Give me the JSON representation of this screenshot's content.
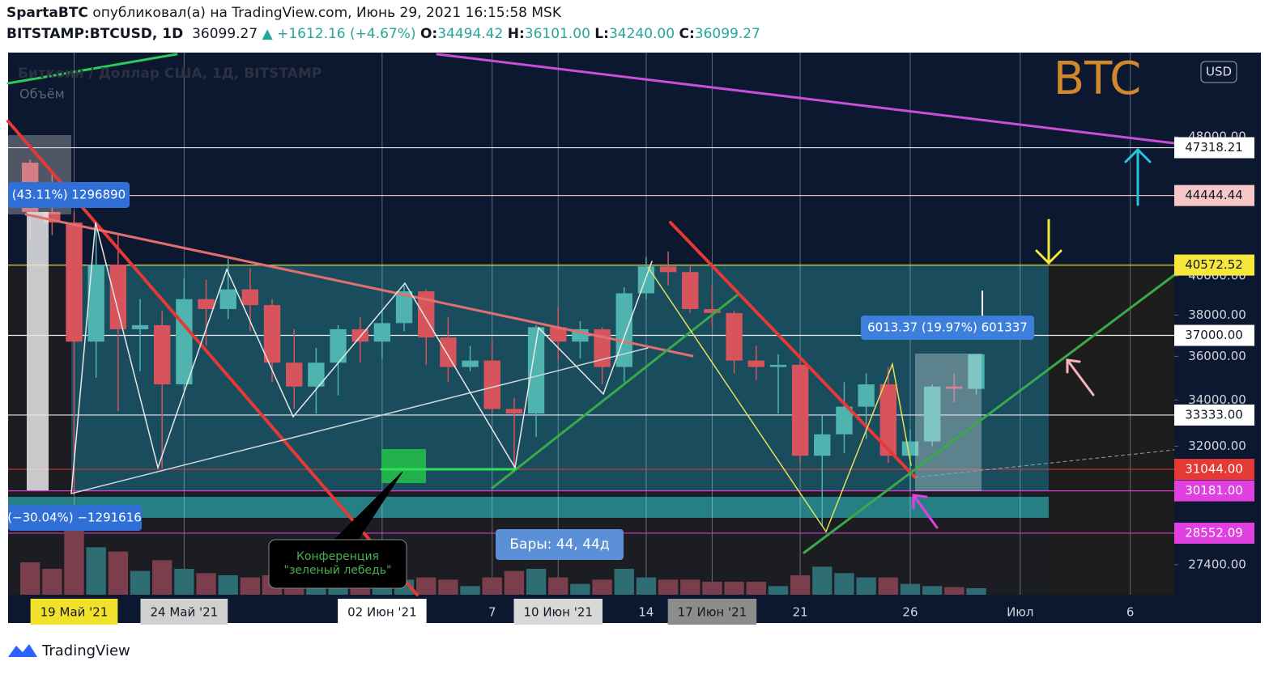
{
  "header": {
    "author": "SpartaBTC",
    "published": "опубликовал(а) на TradingView.com, Июнь 29, 2021 16:15:58 MSK",
    "symbol": "BITSTAMP:BTCUSD, 1D",
    "last": "36099.27",
    "change": "▲ +1612.16 (+4.67%)",
    "o_label": "O:",
    "o": "34494.42",
    "h_label": "H:",
    "h": "36101.00",
    "l_label": "L:",
    "l": "34240.00",
    "c_label": "C:",
    "c": "36099.27"
  },
  "legend": {
    "title": "Биткоин / Доллар США, 1Д, BITSTAMP",
    "volume": "Объём",
    "currency": "USD",
    "watermark": "BTC"
  },
  "annotations": {
    "range_up": "(43.11%) 1296890",
    "range_down": "(−30.04%) −1291616",
    "range_recent": "6013.37 (19.97%) 601337",
    "bars": "Бары: 44, 44д",
    "callout_1": "Конференция",
    "callout_2": "\"зеленый лебедь\""
  },
  "footer": {
    "brand": "TradingView"
  },
  "chart_data": {
    "type": "candlestick",
    "log_scale": true,
    "grid": true,
    "up_color": "#4fb3b0",
    "down_color": "#d8545c",
    "vol_up_color": "#2e6d74",
    "vol_down_color": "#7a3e4c",
    "x": [
      "2021-05-17",
      "2021-05-18",
      "2021-05-19",
      "2021-05-20",
      "2021-05-21",
      "2021-05-22",
      "2021-05-23",
      "2021-05-24",
      "2021-05-25",
      "2021-05-26",
      "2021-05-27",
      "2021-05-28",
      "2021-05-29",
      "2021-05-30",
      "2021-05-31",
      "2021-06-01",
      "2021-06-02",
      "2021-06-03",
      "2021-06-04",
      "2021-06-05",
      "2021-06-06",
      "2021-06-07",
      "2021-06-08",
      "2021-06-09",
      "2021-06-10",
      "2021-06-11",
      "2021-06-12",
      "2021-06-13",
      "2021-06-14",
      "2021-06-15",
      "2021-06-16",
      "2021-06-17",
      "2021-06-18",
      "2021-06-19",
      "2021-06-20",
      "2021-06-21",
      "2021-06-22",
      "2021-06-23",
      "2021-06-24",
      "2021-06-25",
      "2021-06-26",
      "2021-06-27",
      "2021-06-28",
      "2021-06-29"
    ],
    "open": [
      46400,
      43500,
      42900,
      36700,
      40600,
      37300,
      37500,
      34700,
      38800,
      38300,
      39300,
      38500,
      35700,
      34600,
      35700,
      37300,
      36700,
      37600,
      39200,
      36900,
      35500,
      35800,
      33600,
      33400,
      37400,
      36700,
      37300,
      35500,
      39100,
      40500,
      40200,
      38300,
      38100,
      35800,
      35500,
      35600,
      31600,
      32500,
      33700,
      34700,
      31600,
      32200,
      34600,
      34494.42
    ],
    "high": [
      46600,
      45800,
      43500,
      42500,
      42200,
      38800,
      38200,
      39900,
      39800,
      40900,
      40400,
      38800,
      37300,
      36400,
      37500,
      37900,
      38200,
      39500,
      39300,
      37900,
      36500,
      36800,
      34100,
      37500,
      38400,
      37700,
      37400,
      39400,
      41000,
      41300,
      40500,
      39500,
      38200,
      36500,
      36100,
      35700,
      33300,
      34800,
      35200,
      35500,
      32700,
      34700,
      35200,
      36101
    ],
    "low": [
      42000,
      42200,
      30000,
      35000,
      33500,
      35300,
      31100,
      34400,
      36500,
      37800,
      37200,
      34800,
      33600,
      33400,
      34200,
      35700,
      35900,
      37200,
      35600,
      34800,
      35300,
      33400,
      31000,
      32400,
      35800,
      35900,
      34700,
      34800,
      38800,
      39500,
      38100,
      37400,
      35200,
      34900,
      33400,
      31300,
      28800,
      31700,
      32300,
      31300,
      30200,
      32000,
      33900,
      34240
    ],
    "close": [
      43500,
      42900,
      36700,
      40600,
      37300,
      37500,
      34700,
      38800,
      38300,
      39300,
      38500,
      35700,
      34600,
      35700,
      37300,
      36700,
      37600,
      39200,
      36900,
      35500,
      35800,
      33600,
      33400,
      37400,
      36700,
      37300,
      35500,
      39100,
      40500,
      40200,
      38300,
      38100,
      35800,
      35500,
      35600,
      31600,
      32500,
      33700,
      34700,
      31600,
      32200,
      34600,
      34500,
      36099.27
    ],
    "volume": [
      15000,
      12000,
      30000,
      22000,
      20000,
      11000,
      16000,
      12000,
      10000,
      9000,
      8000,
      9000,
      8000,
      6000,
      6000,
      6000,
      6000,
      7000,
      8000,
      7000,
      4000,
      8000,
      11000,
      12000,
      8000,
      5000,
      7000,
      12000,
      8000,
      7000,
      7000,
      6000,
      6000,
      6000,
      4000,
      9000,
      13000,
      10000,
      8000,
      8000,
      5000,
      4000,
      3500,
      3000
    ],
    "xlim": [
      "2021-05-16",
      "2021-07-08"
    ],
    "xticks": [
      {
        "value": "2021-05-19",
        "label": "19 Май '21"
      },
      {
        "value": "2021-05-24",
        "label": "24 Май '21"
      },
      {
        "value": "2021-06-02",
        "label": "02 Июн '21"
      },
      {
        "value": "2021-06-07",
        "label": "7"
      },
      {
        "value": "2021-06-10",
        "label": "10 Июн '21"
      },
      {
        "value": "2021-06-14",
        "label": "14"
      },
      {
        "value": "2021-06-17",
        "label": "17 Июн '21"
      },
      {
        "value": "2021-06-21",
        "label": "21"
      },
      {
        "value": "2021-06-26",
        "label": "26"
      },
      {
        "value": "2021-07-01",
        "label": "Июл"
      },
      {
        "value": "2021-07-06",
        "label": "6"
      }
    ],
    "xtick_boxes": [
      "#f2e12a",
      "#d0d0d0",
      "#ffffff",
      null,
      "#d8d8d8",
      null,
      "#8c8c8c",
      null,
      null,
      null,
      null
    ],
    "ylim": [
      26340,
      53600
    ],
    "yticks": [
      {
        "value": 48000,
        "label": "48000.00"
      },
      {
        "value": 40000,
        "label": "40000.00"
      },
      {
        "value": 38000,
        "label": "38000.00"
      },
      {
        "value": 36000,
        "label": "36000.00"
      },
      {
        "value": 34000,
        "label": "34000.00"
      },
      {
        "value": 32000,
        "label": "32000.00"
      },
      {
        "value": 27400,
        "label": "27400.00"
      }
    ],
    "levels": [
      {
        "value": 47318.21,
        "label": "47318.21",
        "color": "#ffffff",
        "text_color": "#131722"
      },
      {
        "value": 44444.44,
        "label": "44444.44",
        "color": "#f7c6c6",
        "text_color": "#131722"
      },
      {
        "value": 40572.52,
        "label": "40572.52",
        "color": "#f5e83a",
        "text_color": "#131722"
      },
      {
        "value": 37000,
        "label": "37000.00",
        "color": "#ffffff",
        "text_color": "#131722"
      },
      {
        "value": 33333,
        "label": "33333.00",
        "color": "#ffffff",
        "text_color": "#131722"
      },
      {
        "value": 31044,
        "label": "31044.00",
        "color": "#e53935",
        "text_color": "#ffffff"
      },
      {
        "value": 30181,
        "label": "30181.00",
        "color": "#e040e0",
        "text_color": "#ffffff"
      },
      {
        "value": 28552.09,
        "label": "28552.09",
        "color": "#e040e0",
        "text_color": "#ffffff"
      }
    ]
  }
}
